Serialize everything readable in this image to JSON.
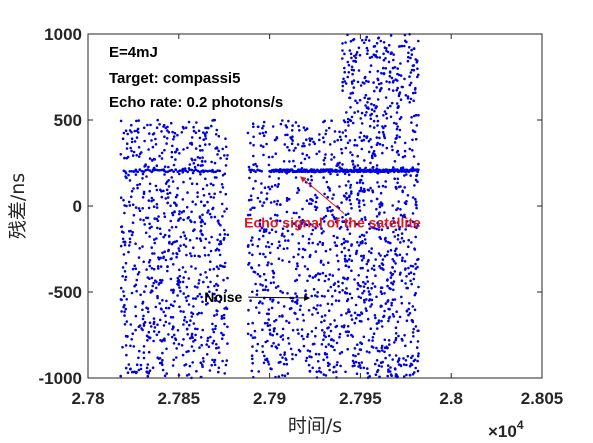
{
  "chart_data": {
    "type": "scatter",
    "xlabel": "时间/s",
    "ylabel": "残差/ns",
    "x_exponent_label": "×10",
    "x_exponent_power": "4",
    "xlim": [
      2.78,
      2.805
    ],
    "ylim": [
      -1000,
      1000
    ],
    "x_ticks": [
      "2.78",
      "2.785",
      "2.79",
      "2.795",
      "2.8",
      "2.805"
    ],
    "x_tick_values": [
      2.78,
      2.785,
      2.79,
      2.795,
      2.8,
      2.805
    ],
    "y_ticks": [
      "1000",
      "500",
      "0",
      "-500",
      "-1000"
    ],
    "y_tick_values": [
      1000,
      500,
      0,
      -500,
      -1000
    ],
    "grid": false,
    "marker_color": "#0000e6",
    "info_lines": [
      "E=4mJ",
      "Target: compassi5",
      "Echo rate: 0.2 photons/s"
    ],
    "annotations": [
      {
        "text": "Echo signal of the satellite",
        "color": "#e0161b",
        "arrow_to": [
          2.7917,
          170
        ],
        "text_at": [
          2.7886,
          -125
        ]
      },
      {
        "text": "Noise",
        "color": "#000000",
        "arrow_to": [
          2.7922,
          -535
        ],
        "text_at": [
          2.7864,
          -530
        ]
      }
    ],
    "series": [
      {
        "kind": "noise",
        "segments": [
          {
            "x": [
              2.7818,
              2.7877
            ],
            "y": [
              -1000,
              500
            ]
          },
          {
            "x": [
              2.7888,
              2.794
            ],
            "y": [
              -1000,
              500
            ]
          },
          {
            "x": [
              2.794,
              2.7982
            ],
            "y": [
              -1000,
              1000
            ]
          }
        ]
      },
      {
        "kind": "signal",
        "y": 205,
        "segments": [
          {
            "x": [
              2.7823,
              2.7873
            ],
            "density": "sparse"
          },
          {
            "x": [
              2.7889,
              2.7896
            ],
            "density": "sparse"
          },
          {
            "x": [
              2.79,
              2.7982
            ],
            "density": "dense"
          }
        ]
      }
    ]
  }
}
